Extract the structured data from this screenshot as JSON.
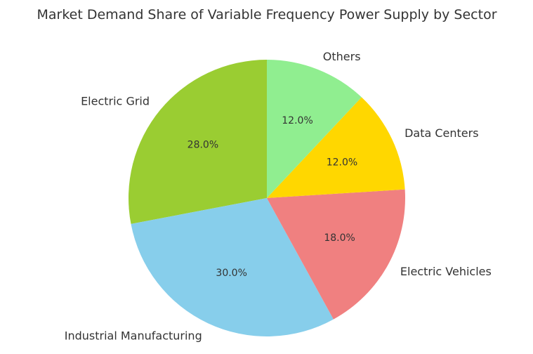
{
  "chart_data": {
    "type": "pie",
    "title": "Market Demand Share of Variable Frequency Power Supply by Sector",
    "categories": [
      "Electric Grid",
      "Industrial Manufacturing",
      "Electric Vehicles",
      "Data Centers",
      "Others"
    ],
    "values": [
      28.0,
      30.0,
      18.0,
      12.0,
      12.0
    ],
    "value_labels": [
      "28.0%",
      "30.0%",
      "18.0%",
      "12.0%",
      "12.0%"
    ],
    "colors": [
      "#9ACD32",
      "#87CEEB",
      "#F08080",
      "#FFD700",
      "#90EE90"
    ],
    "start_angle_deg": 90,
    "direction": "counterclockwise",
    "legend": "none"
  }
}
